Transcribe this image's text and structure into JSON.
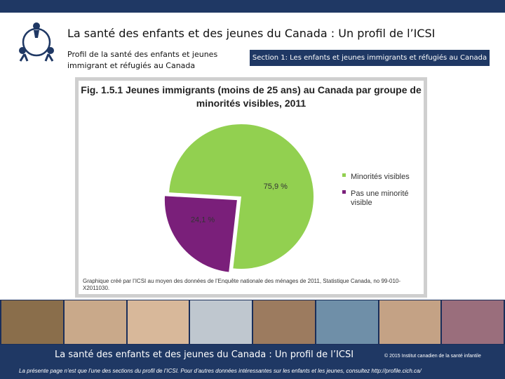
{
  "header": {
    "title": "La santé des enfants et des jeunes du Canada : Un profil de l’ICSI",
    "subtitle": "Profil de la santé des enfants et jeunes immigrant et réfugiés au Canada",
    "section_badge": "Section 1: Les enfants et jeunes immigrants et réfugiés au Canada",
    "logo_icon": "children-circle-logo-icon"
  },
  "chart_data": {
    "type": "pie",
    "title": "Fig. 1.5.1 Jeunes immigrants (moins de 25 ans) au Canada par groupe de minorités visibles, 2011",
    "slices": [
      {
        "label": "Minorités visibles",
        "value": 75.9,
        "value_label": "75,9 %",
        "color": "#92d050"
      },
      {
        "label": "Pas une minorité visible",
        "value": 24.1,
        "value_label": "24,1 %",
        "color": "#7a1f7a"
      }
    ],
    "legend_position": "right",
    "source_note": "Graphique créé par l’ICSI au moyen des données de l’Enquête nationale des ménages de 2011, Statistique Canada, no 99-010-X2011030."
  },
  "photo_strip": {
    "colors": [
      "#8a6e4b",
      "#c9a98a",
      "#d8b89a",
      "#bfc7cf",
      "#9c7b5f",
      "#6f8fa8",
      "#c4a285",
      "#9a6e7c"
    ]
  },
  "footer": {
    "title": "La santé des enfants et des jeunes du Canada : Un profil de l’ICSI",
    "copyright": "© 2015 Institut canadien de la santé infantile",
    "note": "La présente page n’est que l’une des sections du profil de l’ICSI. Pour d’autres données intéressantes sur les enfants et les jeunes, consultez",
    "link": "http://profile.cich.ca/"
  }
}
